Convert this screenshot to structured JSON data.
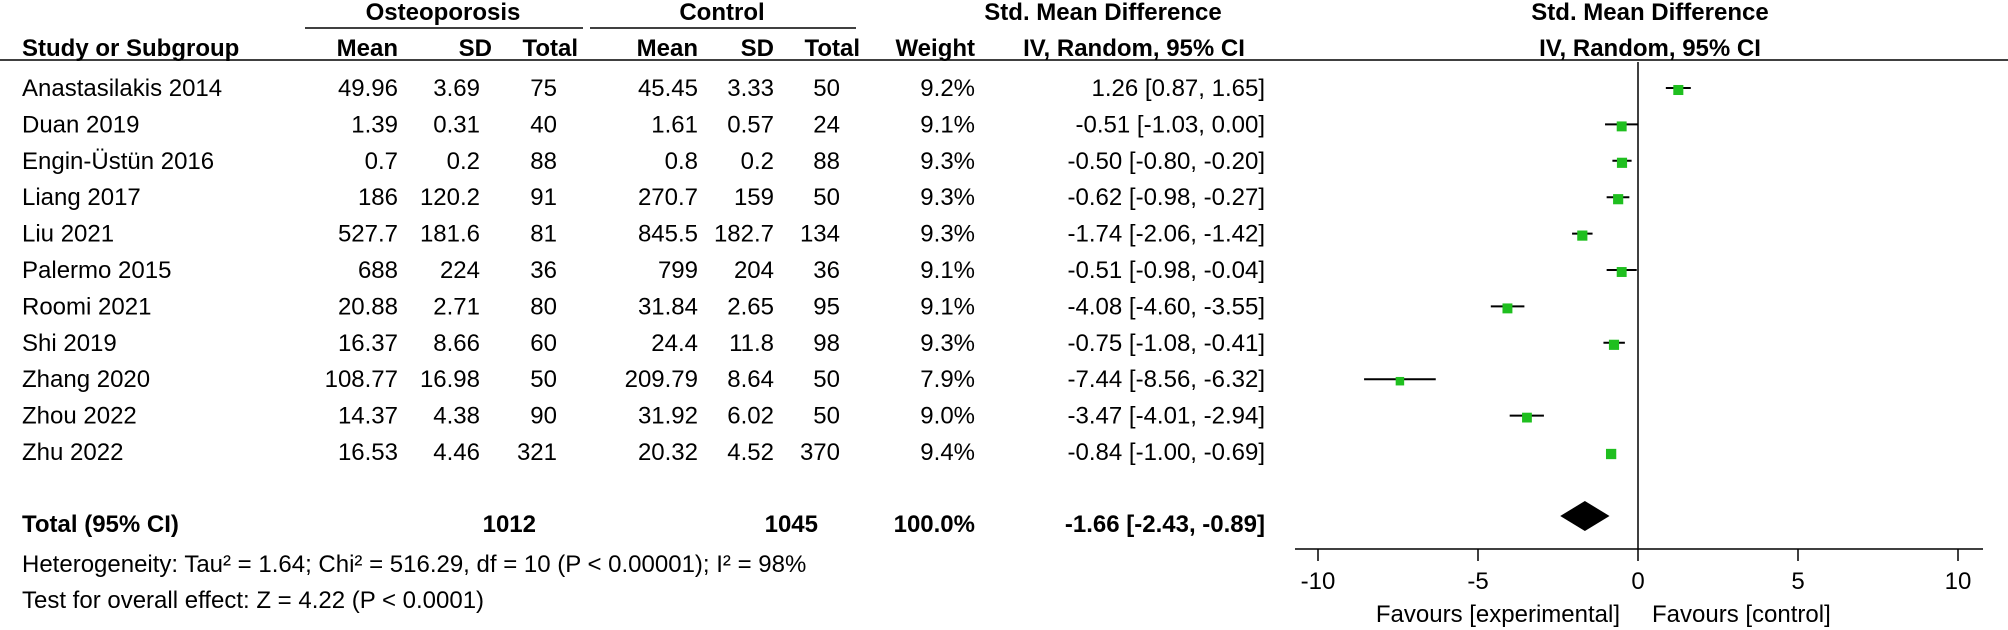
{
  "header": {
    "group_exp": "Osteoporosis",
    "group_ctl": "Control",
    "smd_title": "Std. Mean Difference",
    "smd_method": "IV, Random, 95% CI",
    "plot_title": "Std. Mean Difference",
    "plot_method": "IV, Random, 95% CI",
    "col_study": "Study or Subgroup",
    "col_mean": "Mean",
    "col_sd": "SD",
    "col_total": "Total",
    "col_weight": "Weight"
  },
  "chart_data": {
    "type": "forest",
    "x_axis": {
      "ticks": [
        -10,
        -5,
        0,
        5,
        10
      ],
      "tick_labels": [
        "-10",
        "-5",
        "0",
        "5",
        "10"
      ],
      "range": [
        -10,
        10
      ],
      "left_label": "Favours [experimental]",
      "right_label": "Favours [control]"
    },
    "studies": [
      {
        "name": "Anastasilakis 2014",
        "exp_mean": "49.96",
        "exp_sd": "3.69",
        "exp_total": "75",
        "ctl_mean": "45.45",
        "ctl_sd": "3.33",
        "ctl_total": "50",
        "weight": "9.2%",
        "ci_text": "1.26 [0.87, 1.65]",
        "smd": 1.26,
        "lo": 0.87,
        "hi": 1.65
      },
      {
        "name": "Duan 2019",
        "exp_mean": "1.39",
        "exp_sd": "0.31",
        "exp_total": "40",
        "ctl_mean": "1.61",
        "ctl_sd": "0.57",
        "ctl_total": "24",
        "weight": "9.1%",
        "ci_text": "-0.51 [-1.03, 0.00]",
        "smd": -0.51,
        "lo": -1.03,
        "hi": 0.0
      },
      {
        "name": "Engin-Üstün 2016",
        "exp_mean": "0.7",
        "exp_sd": "0.2",
        "exp_total": "88",
        "ctl_mean": "0.8",
        "ctl_sd": "0.2",
        "ctl_total": "88",
        "weight": "9.3%",
        "ci_text": "-0.50 [-0.80, -0.20]",
        "smd": -0.5,
        "lo": -0.8,
        "hi": -0.2
      },
      {
        "name": "Liang 2017",
        "exp_mean": "186",
        "exp_sd": "120.2",
        "exp_total": "91",
        "ctl_mean": "270.7",
        "ctl_sd": "159",
        "ctl_total": "50",
        "weight": "9.3%",
        "ci_text": "-0.62 [-0.98, -0.27]",
        "smd": -0.62,
        "lo": -0.98,
        "hi": -0.27
      },
      {
        "name": "Liu 2021",
        "exp_mean": "527.7",
        "exp_sd": "181.6",
        "exp_total": "81",
        "ctl_mean": "845.5",
        "ctl_sd": "182.7",
        "ctl_total": "134",
        "weight": "9.3%",
        "ci_text": "-1.74 [-2.06, -1.42]",
        "smd": -1.74,
        "lo": -2.06,
        "hi": -1.42
      },
      {
        "name": "Palermo 2015",
        "exp_mean": "688",
        "exp_sd": "224",
        "exp_total": "36",
        "ctl_mean": "799",
        "ctl_sd": "204",
        "ctl_total": "36",
        "weight": "9.1%",
        "ci_text": "-0.51 [-0.98, -0.04]",
        "smd": -0.51,
        "lo": -0.98,
        "hi": -0.04
      },
      {
        "name": "Roomi 2021",
        "exp_mean": "20.88",
        "exp_sd": "2.71",
        "exp_total": "80",
        "ctl_mean": "31.84",
        "ctl_sd": "2.65",
        "ctl_total": "95",
        "weight": "9.1%",
        "ci_text": "-4.08 [-4.60, -3.55]",
        "smd": -4.08,
        "lo": -4.6,
        "hi": -3.55
      },
      {
        "name": "Shi 2019",
        "exp_mean": "16.37",
        "exp_sd": "8.66",
        "exp_total": "60",
        "ctl_mean": "24.4",
        "ctl_sd": "11.8",
        "ctl_total": "98",
        "weight": "9.3%",
        "ci_text": "-0.75 [-1.08, -0.41]",
        "smd": -0.75,
        "lo": -1.08,
        "hi": -0.41
      },
      {
        "name": "Zhang 2020",
        "exp_mean": "108.77",
        "exp_sd": "16.98",
        "exp_total": "50",
        "ctl_mean": "209.79",
        "ctl_sd": "8.64",
        "ctl_total": "50",
        "weight": "7.9%",
        "ci_text": "-7.44 [-8.56, -6.32]",
        "smd": -7.44,
        "lo": -8.56,
        "hi": -6.32
      },
      {
        "name": "Zhou 2022",
        "exp_mean": "14.37",
        "exp_sd": "4.38",
        "exp_total": "90",
        "ctl_mean": "31.92",
        "ctl_sd": "6.02",
        "ctl_total": "50",
        "weight": "9.0%",
        "ci_text": "-3.47 [-4.01, -2.94]",
        "smd": -3.47,
        "lo": -4.01,
        "hi": -2.94
      },
      {
        "name": "Zhu 2022",
        "exp_mean": "16.53",
        "exp_sd": "4.46",
        "exp_total": "321",
        "ctl_mean": "20.32",
        "ctl_sd": "4.52",
        "ctl_total": "370",
        "weight": "9.4%",
        "ci_text": "-0.84 [-1.00, -0.69]",
        "smd": -0.84,
        "lo": -1.0,
        "hi": -0.69
      }
    ],
    "total": {
      "name": "Total (95% CI)",
      "exp_total": "1012",
      "ctl_total": "1045",
      "weight": "100.0%",
      "ci_text": "-1.66 [-2.43, -0.89]",
      "smd": -1.66,
      "lo": -2.43,
      "hi": -0.89
    },
    "heterogeneity": "Heterogeneity: Tau² = 1.64; Chi² = 516.29, df = 10 (P < 0.00001); I² = 98%",
    "overall_effect": "Test for overall effect: Z = 4.22 (P < 0.0001)",
    "marker_color": "#1fbf1f"
  }
}
